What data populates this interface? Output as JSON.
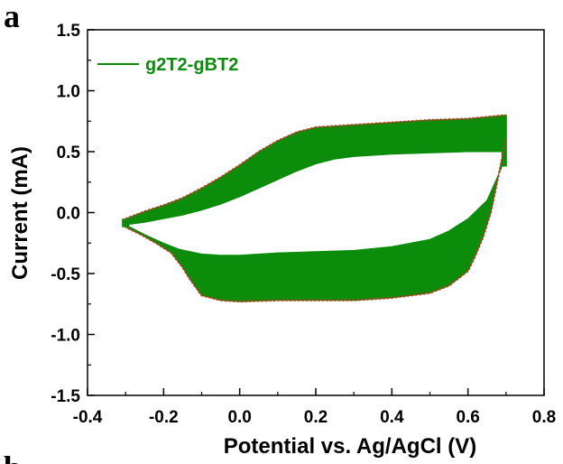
{
  "panel_labels": [
    "a",
    "b"
  ],
  "chart_data": {
    "type": "line",
    "title": "",
    "xlabel": "Potential vs. Ag/AgCl (V)",
    "ylabel": "Current (mA)",
    "xlim": [
      -0.4,
      0.8
    ],
    "ylim": [
      -1.5,
      1.5
    ],
    "xticks": [
      "-0.4",
      "-0.2",
      "0.0",
      "0.2",
      "0.4",
      "0.6",
      "0.8"
    ],
    "yticks": [
      "-1.5",
      "-1.0",
      "-0.5",
      "0.0",
      "0.5",
      "1.0",
      "1.5"
    ],
    "grid": false,
    "legend": "top-left",
    "series": [
      {
        "name": "g2T2-gBT2",
        "color": "#0b8c0b",
        "note_style": "filled band of repeated CV cycles",
        "upper_outer": {
          "x": [
            -0.3,
            -0.25,
            -0.2,
            -0.15,
            -0.1,
            -0.05,
            0.0,
            0.05,
            0.1,
            0.15,
            0.2,
            0.25,
            0.3,
            0.4,
            0.5,
            0.6,
            0.7
          ],
          "y": [
            -0.05,
            0.01,
            0.06,
            0.12,
            0.2,
            0.29,
            0.39,
            0.5,
            0.59,
            0.66,
            0.7,
            0.71,
            0.72,
            0.74,
            0.76,
            0.77,
            0.8
          ]
        },
        "upper_inner": {
          "x": [
            -0.3,
            -0.25,
            -0.2,
            -0.15,
            -0.1,
            -0.05,
            0.0,
            0.05,
            0.1,
            0.15,
            0.2,
            0.25,
            0.3,
            0.4,
            0.5,
            0.6,
            0.7
          ],
          "y": [
            -0.1,
            -0.08,
            -0.05,
            -0.02,
            0.02,
            0.07,
            0.13,
            0.2,
            0.27,
            0.34,
            0.4,
            0.44,
            0.46,
            0.48,
            0.49,
            0.5,
            0.5
          ]
        },
        "lower_inner": {
          "x": [
            0.7,
            0.65,
            0.6,
            0.55,
            0.5,
            0.4,
            0.3,
            0.2,
            0.1,
            0.0,
            -0.05,
            -0.1,
            -0.13,
            -0.16,
            -0.2,
            -0.25,
            -0.3
          ],
          "y": [
            0.45,
            0.1,
            -0.05,
            -0.15,
            -0.22,
            -0.28,
            -0.31,
            -0.32,
            -0.33,
            -0.35,
            -0.35,
            -0.34,
            -0.32,
            -0.3,
            -0.25,
            -0.18,
            -0.1
          ]
        },
        "lower_outer": {
          "x": [
            0.7,
            0.68,
            0.66,
            0.64,
            0.62,
            0.6,
            0.55,
            0.5,
            0.4,
            0.3,
            0.2,
            0.1,
            0.0,
            -0.05,
            -0.1,
            -0.13,
            -0.15,
            -0.18,
            -0.22,
            -0.26,
            -0.3
          ],
          "y": [
            0.6,
            0.3,
            0.0,
            -0.2,
            -0.35,
            -0.48,
            -0.6,
            -0.66,
            -0.7,
            -0.72,
            -0.72,
            -0.72,
            -0.73,
            -0.72,
            -0.68,
            -0.55,
            -0.45,
            -0.33,
            -0.25,
            -0.18,
            -0.12
          ]
        }
      }
    ],
    "envelope_color": "#e8201f"
  }
}
